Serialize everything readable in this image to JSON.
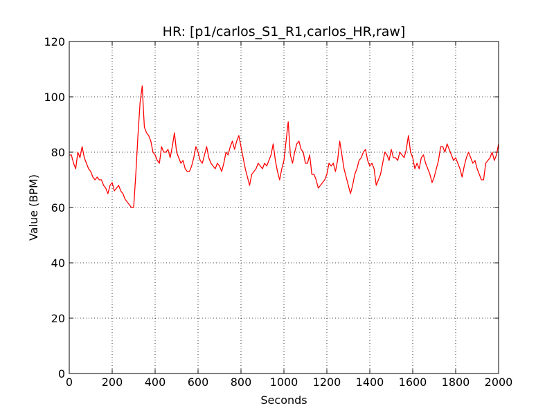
{
  "chart_data": {
    "type": "line",
    "title": "HR: [p1/carlos_S1_R1,carlos_HR,raw]",
    "xlabel": "Seconds",
    "ylabel": "Value (BPM)",
    "x": [
      0,
      10,
      20,
      30,
      40,
      50,
      60,
      70,
      80,
      90,
      100,
      110,
      120,
      130,
      140,
      150,
      160,
      170,
      180,
      190,
      200,
      210,
      220,
      230,
      240,
      250,
      260,
      270,
      280,
      290,
      300,
      310,
      320,
      330,
      335,
      340,
      345,
      350,
      360,
      370,
      380,
      390,
      400,
      410,
      420,
      430,
      440,
      450,
      460,
      470,
      480,
      490,
      500,
      510,
      520,
      530,
      540,
      550,
      560,
      570,
      580,
      590,
      600,
      610,
      620,
      630,
      640,
      650,
      660,
      670,
      680,
      690,
      700,
      710,
      720,
      730,
      740,
      750,
      760,
      770,
      780,
      790,
      800,
      810,
      820,
      830,
      840,
      850,
      860,
      870,
      880,
      890,
      900,
      910,
      920,
      930,
      940,
      950,
      960,
      970,
      980,
      990,
      1000,
      1010,
      1020,
      1030,
      1040,
      1050,
      1060,
      1070,
      1080,
      1090,
      1100,
      1110,
      1120,
      1130,
      1140,
      1150,
      1160,
      1170,
      1180,
      1190,
      1200,
      1210,
      1220,
      1230,
      1240,
      1250,
      1260,
      1270,
      1280,
      1290,
      1300,
      1310,
      1320,
      1330,
      1340,
      1350,
      1360,
      1370,
      1380,
      1390,
      1400,
      1410,
      1420,
      1430,
      1440,
      1450,
      1460,
      1470,
      1480,
      1490,
      1500,
      1510,
      1520,
      1530,
      1540,
      1550,
      1560,
      1570,
      1580,
      1590,
      1600,
      1610,
      1620,
      1630,
      1640,
      1650,
      1660,
      1670,
      1680,
      1690,
      1700,
      1710,
      1720,
      1730,
      1740,
      1750,
      1760,
      1770,
      1780,
      1790,
      1800,
      1810,
      1820,
      1830,
      1840,
      1850,
      1860,
      1870,
      1880,
      1890,
      1900,
      1910,
      1920,
      1930,
      1940,
      1950,
      1960,
      1970,
      1980,
      1990,
      2000
    ],
    "series": [
      {
        "color": "#ff0000",
        "values": [
          79,
          79,
          76,
          74,
          80,
          78,
          82,
          78,
          76,
          74,
          73,
          71,
          70,
          71,
          70,
          70,
          68,
          67,
          65,
          68,
          69,
          66,
          67,
          68,
          66,
          65,
          63,
          62,
          61,
          60,
          60,
          72,
          86,
          98,
          101,
          104,
          96,
          89,
          87,
          86,
          84,
          80,
          79,
          77,
          76,
          82,
          80,
          80,
          81,
          78,
          82,
          87,
          80,
          78,
          76,
          77,
          74,
          73,
          73,
          75,
          78,
          82,
          80,
          77,
          76,
          79,
          82,
          78,
          76,
          75,
          74,
          76,
          75,
          73,
          76,
          80,
          79,
          82,
          84,
          81,
          84,
          86,
          82,
          78,
          74,
          71,
          68,
          72,
          73,
          74,
          76,
          75,
          74,
          76,
          75,
          77,
          79,
          83,
          77,
          73,
          70,
          74,
          77,
          84,
          91,
          79,
          76,
          80,
          83,
          84,
          81,
          80,
          76,
          76,
          79,
          72,
          72,
          70,
          67,
          68,
          69,
          70,
          72,
          76,
          75,
          76,
          73,
          77,
          84,
          79,
          74,
          71,
          68,
          65,
          68,
          72,
          74,
          77,
          78,
          80,
          81,
          77,
          75,
          76,
          74,
          68,
          70,
          72,
          76,
          80,
          79,
          77,
          81,
          78,
          78,
          77,
          80,
          79,
          78,
          81,
          86,
          80,
          78,
          74,
          76,
          74,
          78,
          79,
          76,
          74,
          72,
          69,
          71,
          74,
          77,
          82,
          82,
          80,
          83,
          81,
          79,
          77,
          78,
          76,
          74,
          71,
          75,
          78,
          80,
          78,
          76,
          77,
          74,
          72,
          70,
          70,
          76,
          77,
          78,
          80,
          77,
          79,
          83
        ]
      }
    ],
    "xlim": [
      0,
      2000
    ],
    "xticks": [
      0,
      200,
      400,
      600,
      800,
      1000,
      1200,
      1400,
      1600,
      1800,
      2000
    ],
    "ylim": [
      0,
      120
    ],
    "yticks": [
      0,
      20,
      40,
      60,
      80,
      100,
      120
    ],
    "grid": true
  }
}
